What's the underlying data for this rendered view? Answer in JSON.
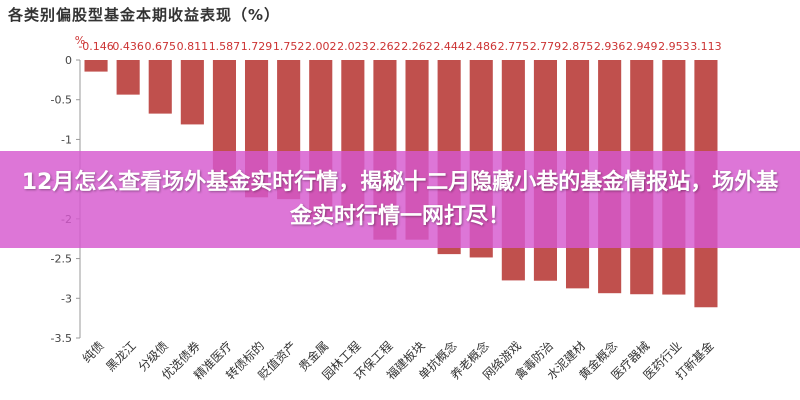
{
  "overlay": {
    "headline": "12月怎么查看场外基金实时行情，揭秘十二月隐藏小巷的基金情报站，场外基金实时行情一网打尽！"
  },
  "chart_data": {
    "type": "bar",
    "title": "各类别偏股型基金本期收益表现（%）",
    "ylabel": "%",
    "ylim": [
      -3.5,
      0
    ],
    "yticks": [
      0,
      -0.5,
      -1,
      -1.5,
      -2,
      -2.5,
      -3,
      -3.5
    ],
    "grid": false,
    "bar_color": "#c0504d",
    "categories": [
      "纯债",
      "黑龙江",
      "分级债",
      "优选债券",
      "精准医疗",
      "转债标的",
      "贬值资产",
      "贵金属",
      "园林工程",
      "环保工程",
      "福建板块",
      "单抗概念",
      "养老概念",
      "网络游戏",
      "禽毒防治",
      "水泥建材",
      "黄金概念",
      "医疗器械",
      "医药行业",
      "打新基金"
    ],
    "values": [
      -0.146,
      -0.436,
      -0.675,
      -0.811,
      -1.587,
      -1.729,
      -1.752,
      -2.002,
      -2.023,
      -2.262,
      -2.262,
      -2.444,
      -2.486,
      -2.775,
      -2.779,
      -2.875,
      -2.936,
      -2.949,
      -2.953,
      -3.113
    ],
    "data_labels": [
      "-0.146",
      "0.436",
      "0.675",
      "0.811",
      "1.587",
      "1.729",
      "1.752",
      "2.002",
      "2.023",
      "2.262",
      "2.262",
      "2.444",
      "2.486",
      "2.775",
      "2.779",
      "2.875",
      "2.936",
      "2.949",
      "2.953",
      "3.113"
    ]
  }
}
